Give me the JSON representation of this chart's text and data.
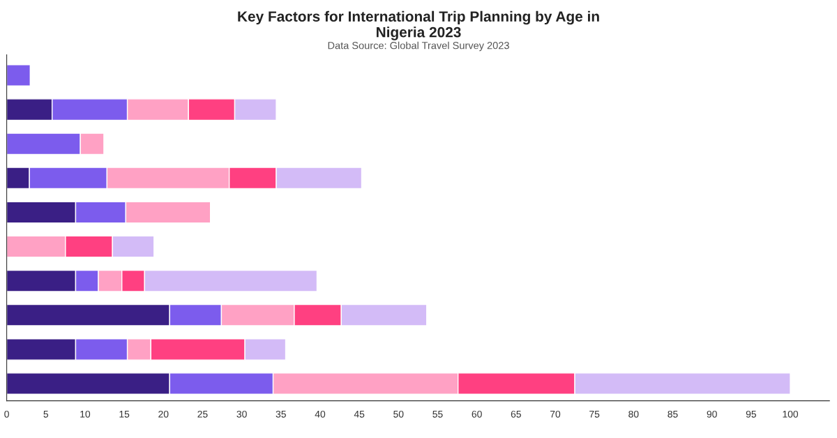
{
  "chart_data": {
    "type": "bar",
    "orientation": "horizontal",
    "stacked": true,
    "title": "Key Factors for International Trip Planning by Age in\nNigeria 2023",
    "subtitle": "Data Source: Global Travel Survey 2023",
    "categories": [
      null,
      null,
      null,
      null,
      null,
      null,
      null,
      null,
      null,
      null
    ],
    "series": [
      {
        "color": "#3a1f85",
        "values": [
          null,
          5.8,
          null,
          2.9,
          8.8,
          null,
          8.8,
          20.8,
          8.8,
          20.8
        ]
      },
      {
        "color": "#7c5ced",
        "values": [
          3.0,
          9.6,
          9.4,
          9.9,
          6.4,
          null,
          2.9,
          6.6,
          6.6,
          13.2
        ]
      },
      {
        "color": "#ffa1c4",
        "values": [
          null,
          7.8,
          3.0,
          15.6,
          10.8,
          7.5,
          3.0,
          9.3,
          3.0,
          23.6
        ]
      },
      {
        "color": "#ff4081",
        "values": [
          null,
          5.9,
          null,
          6.0,
          null,
          6.0,
          2.9,
          6.0,
          12.0,
          14.9
        ]
      },
      {
        "color": "#d3bbf7",
        "values": [
          null,
          5.3,
          null,
          10.9,
          null,
          5.3,
          22.0,
          10.9,
          5.2,
          27.5
        ]
      }
    ],
    "xlim": [
      0,
      105
    ],
    "xticks": [
      0,
      5,
      10,
      15,
      20,
      25,
      30,
      35,
      40,
      45,
      50,
      55,
      60,
      65,
      70,
      75,
      80,
      85,
      90,
      95,
      100
    ],
    "tick_labels": "x",
    "grid": false
  }
}
